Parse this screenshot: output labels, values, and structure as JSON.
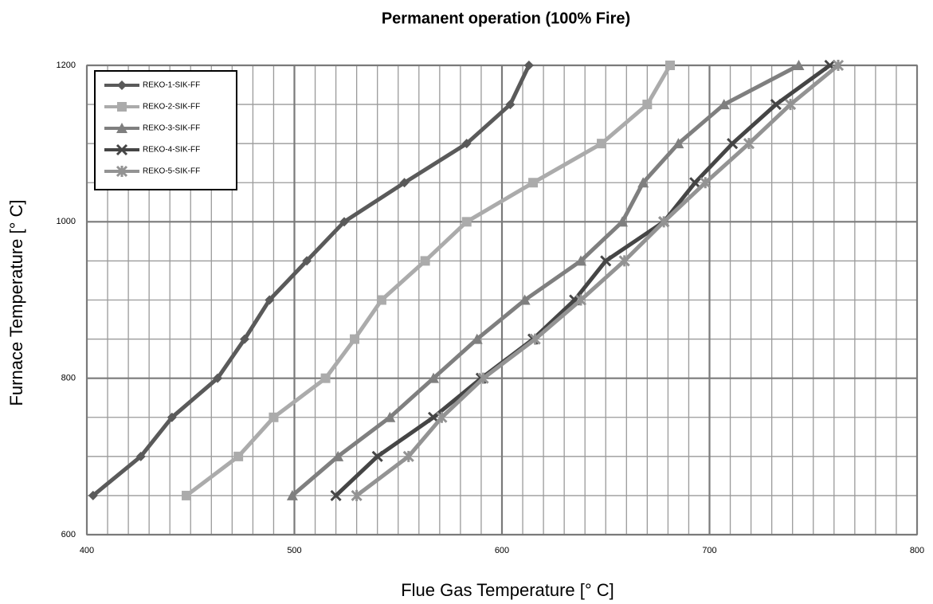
{
  "chart_data": {
    "type": "line",
    "title": "Permanent operation (100% Fire)",
    "x_label": "Flue Gas Temperature [° C]",
    "y_label": "Furnace Temperature [° C]",
    "xlim": [
      400,
      800
    ],
    "xticks": [
      400,
      500,
      600,
      700,
      800
    ],
    "ylim": [
      600,
      1200
    ],
    "yticks": [
      600,
      800,
      1000,
      1200
    ],
    "grid": true,
    "legend": "upper left",
    "series": [
      {
        "name": "REKO-1-SIK-FF",
        "color": "#5a5a5a",
        "marker": "diamond",
        "x": [
          403,
          426,
          441,
          463,
          476,
          488,
          506,
          524,
          553,
          583,
          604,
          613
        ],
        "values": [
          650,
          700,
          750,
          800,
          850,
          900,
          950,
          1000,
          1050,
          1100,
          1150,
          1200
        ]
      },
      {
        "name": "REKO-2-SIK-FF",
        "color": "#ababab",
        "marker": "square",
        "x": [
          448,
          473,
          490,
          515,
          529,
          542,
          563,
          583,
          615,
          648,
          670,
          681
        ],
        "values": [
          650,
          700,
          750,
          800,
          850,
          900,
          950,
          1000,
          1050,
          1100,
          1150,
          1200
        ]
      },
      {
        "name": "REKO-3-SIK-FF",
        "color": "#7f7f7f",
        "marker": "triangle",
        "x": [
          499,
          521,
          546,
          567,
          588,
          611,
          638,
          658,
          668,
          685,
          707,
          743
        ],
        "values": [
          650,
          700,
          750,
          800,
          850,
          900,
          950,
          1000,
          1050,
          1100,
          1150,
          1200
        ]
      },
      {
        "name": "REKO-4-SIK-FF",
        "color": "#454545",
        "marker": "x",
        "x": [
          520,
          540,
          567,
          590,
          615,
          635,
          650,
          678,
          693,
          711,
          732,
          758
        ],
        "values": [
          650,
          700,
          750,
          800,
          850,
          900,
          950,
          1000,
          1050,
          1100,
          1150,
          1200
        ]
      },
      {
        "name": "REKO-5-SIK-FF",
        "color": "#939393",
        "marker": "star",
        "x": [
          530,
          555,
          571,
          591,
          616,
          638,
          659,
          678,
          698,
          719,
          739,
          762
        ],
        "values": [
          650,
          700,
          750,
          800,
          850,
          900,
          950,
          1000,
          1050,
          1100,
          1150,
          1200
        ]
      }
    ]
  }
}
